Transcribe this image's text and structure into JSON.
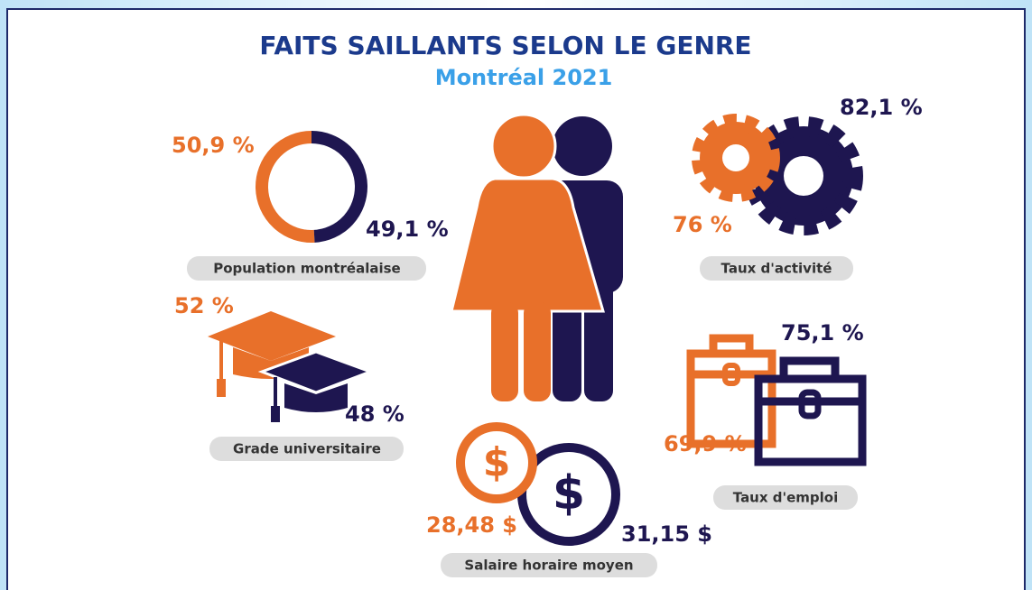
{
  "header": {
    "title": "FAITS SAILLANTS SELON LE GENRE",
    "subtitle": "Montréal 2021"
  },
  "population": {
    "label": "Population montréalaise",
    "women": {
      "value": 50.9,
      "value_label": "50,9 %"
    },
    "men": {
      "value": 49.1,
      "value_label": "49,1 %"
    }
  },
  "university": {
    "label": "Grade universitaire",
    "women": "52 %",
    "men": "48 %"
  },
  "activity": {
    "label": "Taux d'activité",
    "women": "76 %",
    "men": "82,1 %"
  },
  "employment": {
    "label": "Taux d'emploi",
    "women": "69,9 %",
    "men": "75,1 %"
  },
  "wage": {
    "label": "Salaire horaire moyen",
    "women": "28,48 $",
    "men": "31,15 $"
  }
}
